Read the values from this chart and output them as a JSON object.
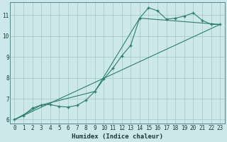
{
  "title": "",
  "xlabel": "Humidex (Indice chaleur)",
  "ylabel": "",
  "bg_color": "#cce8ea",
  "line_color": "#2e7d6e",
  "grid_color": "#aacccc",
  "xlim": [
    -0.5,
    23.5
  ],
  "ylim": [
    5.8,
    11.6
  ],
  "yticks": [
    6,
    7,
    8,
    9,
    10,
    11
  ],
  "xticks": [
    0,
    1,
    2,
    3,
    4,
    5,
    6,
    7,
    8,
    9,
    10,
    11,
    12,
    13,
    14,
    15,
    16,
    17,
    18,
    19,
    20,
    21,
    22,
    23
  ],
  "series1_x": [
    0,
    1,
    2,
    3,
    4,
    5,
    6,
    7,
    8,
    9,
    10,
    11,
    12,
    13,
    14,
    15,
    16,
    17,
    18,
    19,
    20,
    21,
    22,
    23
  ],
  "series1_y": [
    6.0,
    6.2,
    6.55,
    6.7,
    6.72,
    6.63,
    6.6,
    6.68,
    6.93,
    7.35,
    7.95,
    8.45,
    9.05,
    9.55,
    10.85,
    11.35,
    11.2,
    10.8,
    10.85,
    10.95,
    11.1,
    10.75,
    10.55,
    10.55
  ],
  "series2_x": [
    0,
    23
  ],
  "series2_y": [
    6.0,
    10.55
  ],
  "series3_x": [
    0,
    3,
    9,
    14,
    23
  ],
  "series3_y": [
    6.0,
    6.7,
    7.35,
    10.85,
    10.55
  ]
}
